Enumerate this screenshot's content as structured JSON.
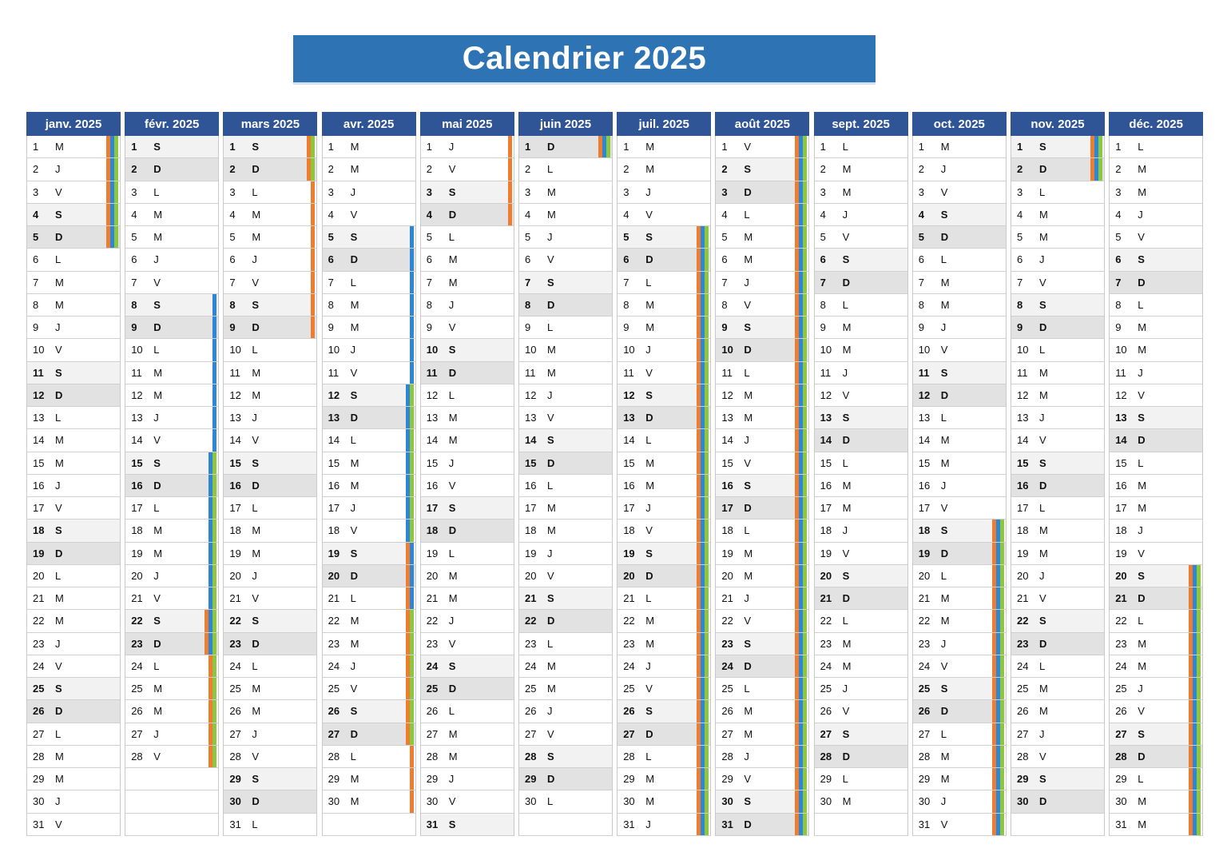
{
  "title": "Calendrier 2025",
  "zone_colors": {
    "z1": "#ed7d31",
    "z2": "#2e86d4",
    "z3": "#8dc63f"
  },
  "months": [
    {
      "name": "janv. 2025",
      "days": 31,
      "first": 2,
      "vac": [
        [
          1,
          5,
          [
            "z1",
            "z2",
            "z3"
          ]
        ]
      ]
    },
    {
      "name": "févr. 2025",
      "days": 28,
      "first": 5,
      "vac": [
        [
          8,
          14,
          [
            "z2"
          ]
        ],
        [
          15,
          21,
          [
            "z2",
            "z3"
          ]
        ],
        [
          22,
          23,
          [
            "z1",
            "z2",
            "z3"
          ]
        ],
        [
          24,
          28,
          [
            "z1",
            "z3"
          ]
        ]
      ]
    },
    {
      "name": "mars 2025",
      "days": 31,
      "first": 5,
      "vac": [
        [
          1,
          2,
          [
            "z1",
            "z3"
          ]
        ],
        [
          3,
          9,
          [
            "z1"
          ]
        ]
      ]
    },
    {
      "name": "avr. 2025",
      "days": 30,
      "first": 1,
      "vac": [
        [
          5,
          11,
          [
            "z2"
          ]
        ],
        [
          12,
          18,
          [
            "z2",
            "z3"
          ]
        ],
        [
          19,
          21,
          [
            "z1",
            "z2"
          ]
        ],
        [
          22,
          27,
          [
            "z1",
            "z3"
          ]
        ],
        [
          28,
          30,
          [
            "z1"
          ]
        ]
      ]
    },
    {
      "name": "mai 2025",
      "days": 31,
      "first": 3,
      "vac": [
        [
          1,
          4,
          [
            "z1"
          ]
        ]
      ]
    },
    {
      "name": "juin 2025",
      "days": 30,
      "first": 6,
      "vac": [
        [
          1,
          1,
          [
            "z1",
            "z2",
            "z3"
          ]
        ]
      ]
    },
    {
      "name": "juil. 2025",
      "days": 31,
      "first": 1,
      "vac": [
        [
          5,
          31,
          [
            "z1",
            "z2",
            "z3"
          ]
        ]
      ]
    },
    {
      "name": "août 2025",
      "days": 31,
      "first": 4,
      "vac": [
        [
          1,
          31,
          [
            "z1",
            "z2",
            "z3"
          ]
        ]
      ]
    },
    {
      "name": "sept. 2025",
      "days": 30,
      "first": 0,
      "vac": []
    },
    {
      "name": "oct. 2025",
      "days": 31,
      "first": 2,
      "vac": [
        [
          18,
          31,
          [
            "z1",
            "z2",
            "z3"
          ]
        ]
      ]
    },
    {
      "name": "nov. 2025",
      "days": 30,
      "first": 5,
      "vac": [
        [
          1,
          2,
          [
            "z1",
            "z2",
            "z3"
          ]
        ]
      ]
    },
    {
      "name": "déc. 2025",
      "days": 31,
      "first": 0,
      "vac": [
        [
          20,
          31,
          [
            "z1",
            "z2",
            "z3"
          ]
        ]
      ]
    }
  ],
  "day_letters": [
    "L",
    "M",
    "M",
    "J",
    "V",
    "S",
    "D"
  ],
  "last_day_special": {
    "month": 7,
    "day": 31,
    "letter": "D"
  },
  "june_last_day_blank": {
    "month": 5,
    "day": 31
  }
}
